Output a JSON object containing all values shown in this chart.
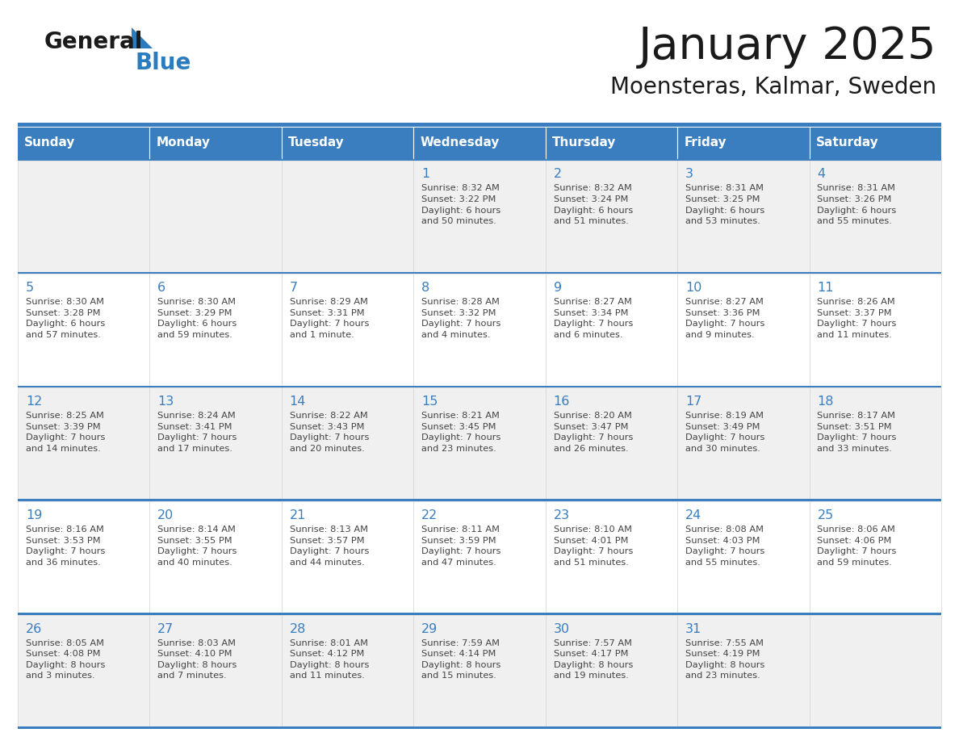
{
  "title": "January 2025",
  "subtitle": "Moensteras, Kalmar, Sweden",
  "days_of_week": [
    "Sunday",
    "Monday",
    "Tuesday",
    "Wednesday",
    "Thursday",
    "Friday",
    "Saturday"
  ],
  "header_bg": "#3A7EBF",
  "header_text": "#FFFFFF",
  "row_bg_even": "#F0F0F0",
  "row_bg_odd": "#FFFFFF",
  "border_color": "#3A7EBF",
  "day_number_color": "#3A7EBF",
  "cell_text_color": "#444444",
  "title_color": "#1a1a1a",
  "logo_general_color": "#1a1a1a",
  "logo_blue_color": "#2B7BBF",
  "logo_triangle_color": "#2B7BBF",
  "calendar_data": [
    [
      {
        "day": null,
        "info": null
      },
      {
        "day": null,
        "info": null
      },
      {
        "day": null,
        "info": null
      },
      {
        "day": 1,
        "info": "Sunrise: 8:32 AM\nSunset: 3:22 PM\nDaylight: 6 hours\nand 50 minutes."
      },
      {
        "day": 2,
        "info": "Sunrise: 8:32 AM\nSunset: 3:24 PM\nDaylight: 6 hours\nand 51 minutes."
      },
      {
        "day": 3,
        "info": "Sunrise: 8:31 AM\nSunset: 3:25 PM\nDaylight: 6 hours\nand 53 minutes."
      },
      {
        "day": 4,
        "info": "Sunrise: 8:31 AM\nSunset: 3:26 PM\nDaylight: 6 hours\nand 55 minutes."
      }
    ],
    [
      {
        "day": 5,
        "info": "Sunrise: 8:30 AM\nSunset: 3:28 PM\nDaylight: 6 hours\nand 57 minutes."
      },
      {
        "day": 6,
        "info": "Sunrise: 8:30 AM\nSunset: 3:29 PM\nDaylight: 6 hours\nand 59 minutes."
      },
      {
        "day": 7,
        "info": "Sunrise: 8:29 AM\nSunset: 3:31 PM\nDaylight: 7 hours\nand 1 minute."
      },
      {
        "day": 8,
        "info": "Sunrise: 8:28 AM\nSunset: 3:32 PM\nDaylight: 7 hours\nand 4 minutes."
      },
      {
        "day": 9,
        "info": "Sunrise: 8:27 AM\nSunset: 3:34 PM\nDaylight: 7 hours\nand 6 minutes."
      },
      {
        "day": 10,
        "info": "Sunrise: 8:27 AM\nSunset: 3:36 PM\nDaylight: 7 hours\nand 9 minutes."
      },
      {
        "day": 11,
        "info": "Sunrise: 8:26 AM\nSunset: 3:37 PM\nDaylight: 7 hours\nand 11 minutes."
      }
    ],
    [
      {
        "day": 12,
        "info": "Sunrise: 8:25 AM\nSunset: 3:39 PM\nDaylight: 7 hours\nand 14 minutes."
      },
      {
        "day": 13,
        "info": "Sunrise: 8:24 AM\nSunset: 3:41 PM\nDaylight: 7 hours\nand 17 minutes."
      },
      {
        "day": 14,
        "info": "Sunrise: 8:22 AM\nSunset: 3:43 PM\nDaylight: 7 hours\nand 20 minutes."
      },
      {
        "day": 15,
        "info": "Sunrise: 8:21 AM\nSunset: 3:45 PM\nDaylight: 7 hours\nand 23 minutes."
      },
      {
        "day": 16,
        "info": "Sunrise: 8:20 AM\nSunset: 3:47 PM\nDaylight: 7 hours\nand 26 minutes."
      },
      {
        "day": 17,
        "info": "Sunrise: 8:19 AM\nSunset: 3:49 PM\nDaylight: 7 hours\nand 30 minutes."
      },
      {
        "day": 18,
        "info": "Sunrise: 8:17 AM\nSunset: 3:51 PM\nDaylight: 7 hours\nand 33 minutes."
      }
    ],
    [
      {
        "day": 19,
        "info": "Sunrise: 8:16 AM\nSunset: 3:53 PM\nDaylight: 7 hours\nand 36 minutes."
      },
      {
        "day": 20,
        "info": "Sunrise: 8:14 AM\nSunset: 3:55 PM\nDaylight: 7 hours\nand 40 minutes."
      },
      {
        "day": 21,
        "info": "Sunrise: 8:13 AM\nSunset: 3:57 PM\nDaylight: 7 hours\nand 44 minutes."
      },
      {
        "day": 22,
        "info": "Sunrise: 8:11 AM\nSunset: 3:59 PM\nDaylight: 7 hours\nand 47 minutes."
      },
      {
        "day": 23,
        "info": "Sunrise: 8:10 AM\nSunset: 4:01 PM\nDaylight: 7 hours\nand 51 minutes."
      },
      {
        "day": 24,
        "info": "Sunrise: 8:08 AM\nSunset: 4:03 PM\nDaylight: 7 hours\nand 55 minutes."
      },
      {
        "day": 25,
        "info": "Sunrise: 8:06 AM\nSunset: 4:06 PM\nDaylight: 7 hours\nand 59 minutes."
      }
    ],
    [
      {
        "day": 26,
        "info": "Sunrise: 8:05 AM\nSunset: 4:08 PM\nDaylight: 8 hours\nand 3 minutes."
      },
      {
        "day": 27,
        "info": "Sunrise: 8:03 AM\nSunset: 4:10 PM\nDaylight: 8 hours\nand 7 minutes."
      },
      {
        "day": 28,
        "info": "Sunrise: 8:01 AM\nSunset: 4:12 PM\nDaylight: 8 hours\nand 11 minutes."
      },
      {
        "day": 29,
        "info": "Sunrise: 7:59 AM\nSunset: 4:14 PM\nDaylight: 8 hours\nand 15 minutes."
      },
      {
        "day": 30,
        "info": "Sunrise: 7:57 AM\nSunset: 4:17 PM\nDaylight: 8 hours\nand 19 minutes."
      },
      {
        "day": 31,
        "info": "Sunrise: 7:55 AM\nSunset: 4:19 PM\nDaylight: 8 hours\nand 23 minutes."
      },
      {
        "day": null,
        "info": null
      }
    ]
  ]
}
